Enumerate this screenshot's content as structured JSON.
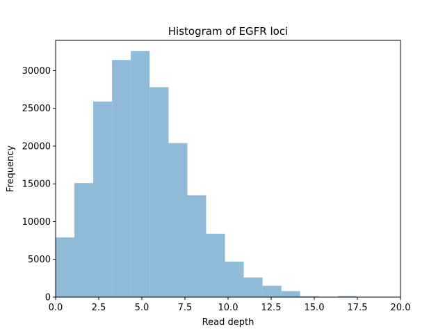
{
  "chart_data": {
    "type": "bar",
    "title": "Histogram of EGFR loci",
    "xlabel": "Read depth",
    "ylabel": "Frequency",
    "xlim": [
      0,
      20
    ],
    "ylim": [
      0,
      34000
    ],
    "xticks": [
      0,
      2.5,
      5,
      7.5,
      10,
      12.5,
      15,
      17.5,
      20
    ],
    "xtick_labels": [
      "0.0",
      "2.5",
      "5.0",
      "7.5",
      "10.0",
      "12.5",
      "15.0",
      "17.5",
      "20.0"
    ],
    "yticks": [
      0,
      5000,
      10000,
      15000,
      20000,
      25000,
      30000
    ],
    "ytick_labels": [
      "0",
      "5000",
      "10000",
      "15000",
      "20000",
      "25000",
      "30000"
    ],
    "grid": false,
    "bar_color": "#8fbad8",
    "bin_edges": [
      0,
      1.09,
      2.18,
      3.27,
      4.36,
      5.45,
      6.55,
      7.64,
      8.73,
      9.82,
      10.91,
      12.0,
      13.09,
      14.18,
      15.27,
      16.36,
      17.45,
      18.55
    ],
    "counts": [
      7900,
      15100,
      25900,
      31400,
      32600,
      27800,
      20400,
      13500,
      8400,
      4700,
      2600,
      1500,
      800,
      120,
      0,
      150,
      0
    ]
  }
}
